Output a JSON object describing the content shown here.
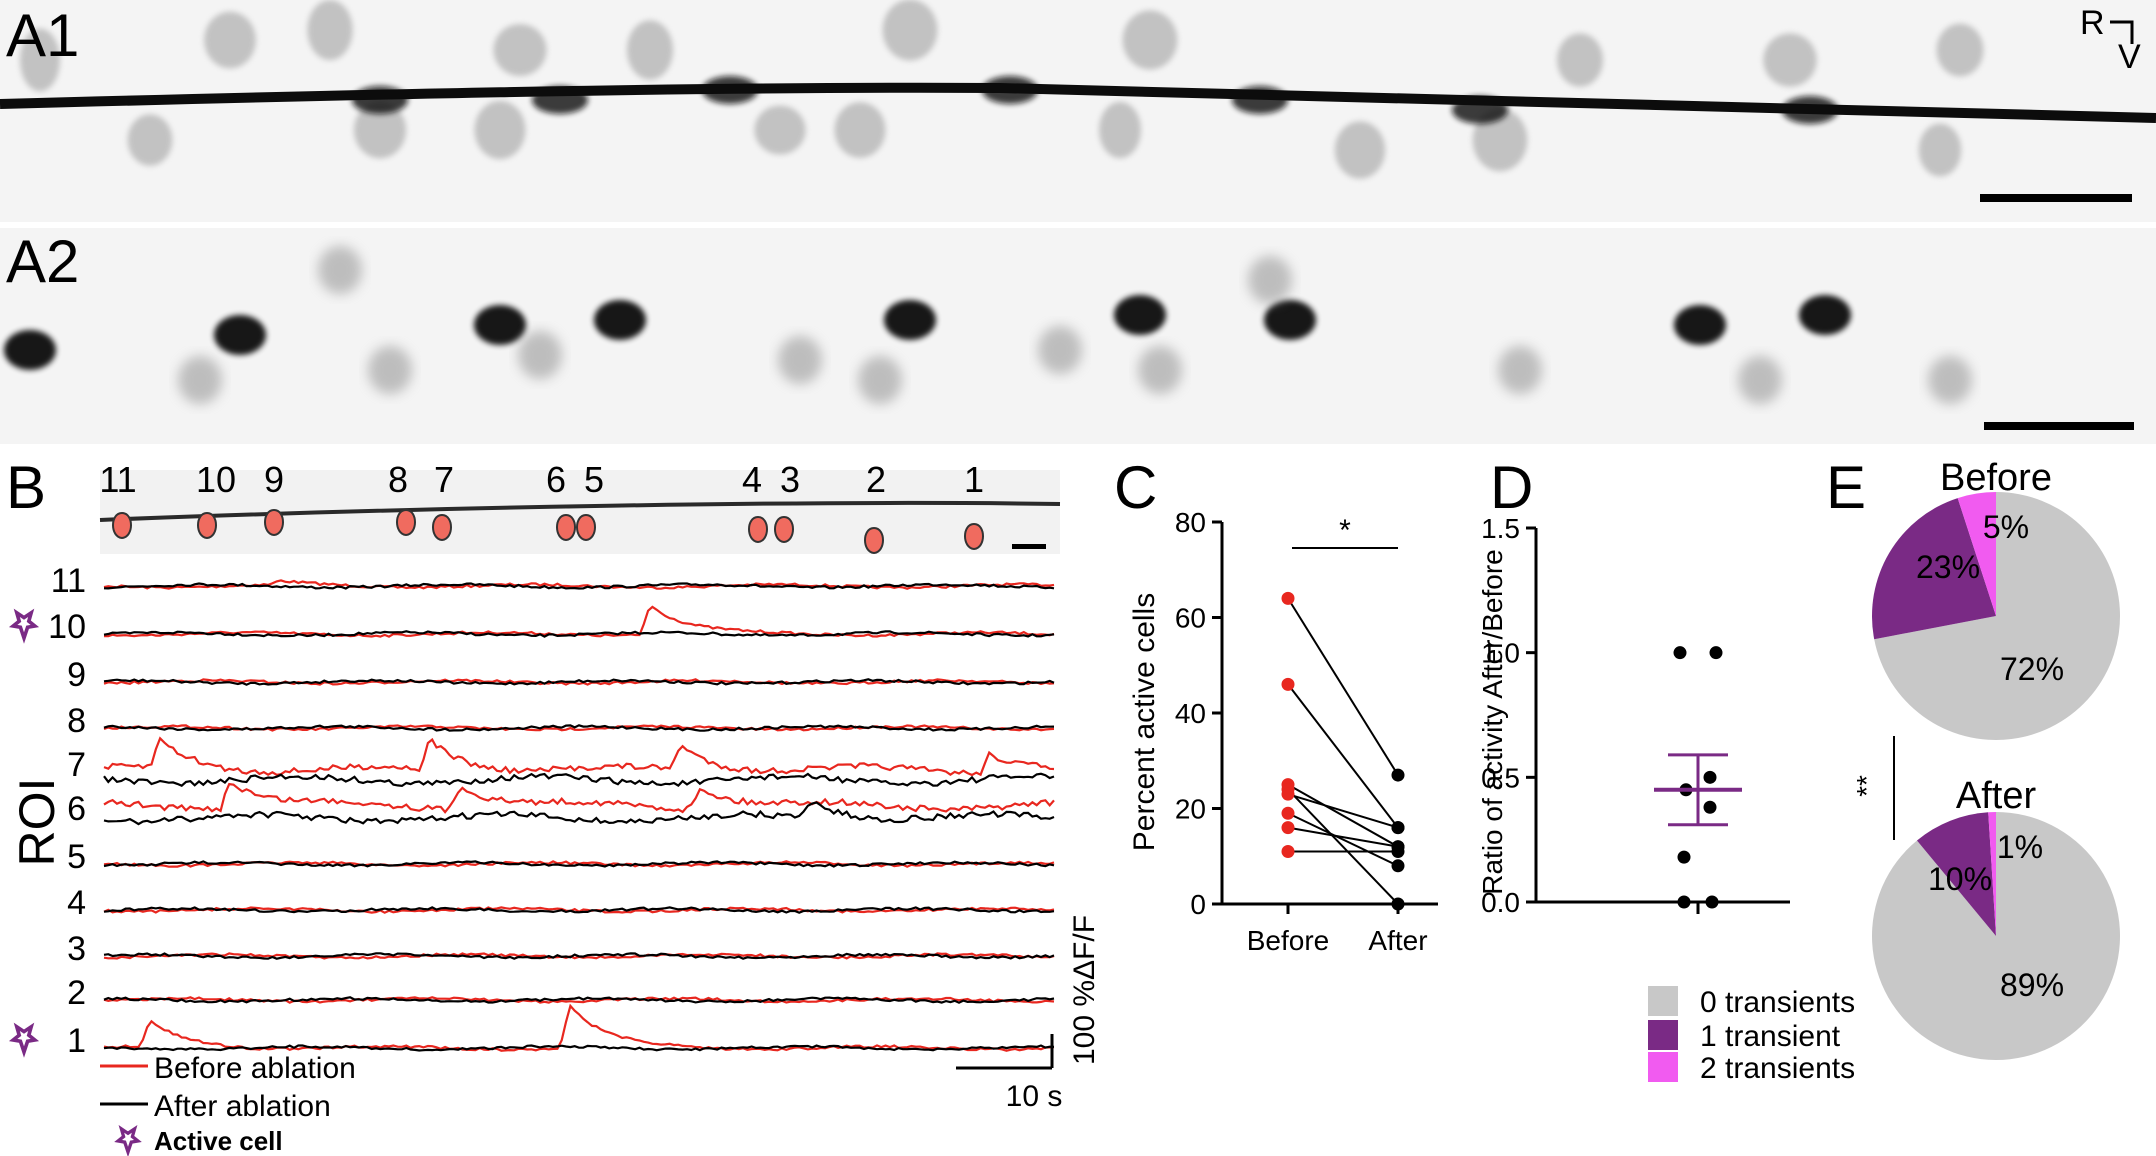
{
  "panel_a1": {
    "label": "A1",
    "orient_r": "R",
    "orient_v": "V"
  },
  "panel_a2": {
    "label": "A2"
  },
  "panel_b": {
    "label": "B",
    "cell_numbers": [
      "11",
      "10",
      "9",
      "8",
      "7",
      "6",
      "5",
      "4",
      "3",
      "2",
      "1"
    ],
    "roi_axis_label": "ROI",
    "roi_labels": [
      "11",
      "10",
      "9",
      "8",
      "7",
      "6",
      "5",
      "4",
      "3",
      "2",
      "1"
    ],
    "scale_y_label": "100 %ΔF/F",
    "scale_x_label": "10 s",
    "legend_before": "Before ablation",
    "legend_after": "After ablation",
    "legend_active": "Active cell",
    "colors": {
      "before": "#e8271f",
      "after": "#000000",
      "active": "#7a2a85",
      "cell_fill": "#f06b5f"
    }
  },
  "panel_c": {
    "label": "C",
    "significance": "*",
    "chart_data": {
      "type": "scatter",
      "categories": [
        "Before",
        "After"
      ],
      "ylabel": "Percent active cells",
      "ylim": [
        0,
        80
      ],
      "yticks": [
        "0",
        "20",
        "40",
        "60",
        "80"
      ],
      "pairs": [
        [
          64,
          27
        ],
        [
          46,
          16
        ],
        [
          25,
          12
        ],
        [
          24,
          0
        ],
        [
          23,
          16
        ],
        [
          19,
          8
        ],
        [
          16,
          12
        ],
        [
          11,
          11
        ]
      ],
      "colors": {
        "before": "#e8271f",
        "after": "#000000"
      }
    }
  },
  "panel_d": {
    "label": "D",
    "chart_data": {
      "type": "scatter",
      "ylabel": "Ratio of activity After/Before",
      "ylim": [
        0,
        1.5
      ],
      "yticks": [
        "0.0",
        "0.5",
        "1.0",
        "1.5"
      ],
      "points": [
        1.0,
        1.0,
        0.5,
        0.45,
        0.38,
        0.18,
        0.0,
        0.0
      ],
      "mean": 0.45,
      "sem": [
        0.31,
        0.59
      ],
      "mean_color": "#7a2a85"
    }
  },
  "panel_e": {
    "label": "E",
    "significance": "**",
    "chart_data": [
      {
        "type": "pie",
        "title": "Before",
        "slices": [
          {
            "label": "0 transients",
            "value": 72,
            "text": "72%",
            "color": "#c8c8c8"
          },
          {
            "label": "1 transient",
            "value": 23,
            "text": "23%",
            "color": "#7a2a85"
          },
          {
            "label": "2 transients",
            "value": 5,
            "text": "5%",
            "color": "#f15bf0"
          }
        ]
      },
      {
        "type": "pie",
        "title": "After",
        "slices": [
          {
            "label": "0 transients",
            "value": 89,
            "text": "89%",
            "color": "#c8c8c8"
          },
          {
            "label": "1 transient",
            "value": 10,
            "text": "10%",
            "color": "#7a2a85"
          },
          {
            "label": "2 transients",
            "value": 1,
            "text": "1%",
            "color": "#f15bf0"
          }
        ]
      }
    ],
    "legend": [
      {
        "label": "0 transients",
        "color": "#c8c8c8"
      },
      {
        "label": "1 transient",
        "color": "#7a2a85"
      },
      {
        "label": "2 transients",
        "color": "#f15bf0"
      }
    ]
  }
}
